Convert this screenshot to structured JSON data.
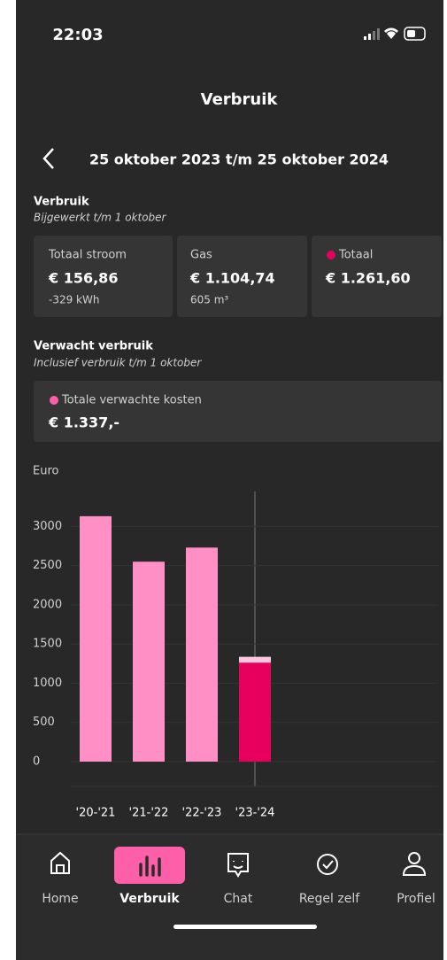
{
  "status": {
    "time": "22:03"
  },
  "header": {
    "title": "Verbruik",
    "period": "25 oktober 2023 t/m 25 oktober 2024"
  },
  "usage": {
    "title": "Verbruik",
    "subtitle": "Bijgewerkt t/m 1 oktober",
    "cards": [
      {
        "label": "Totaal stroom",
        "value": "€ 156,86",
        "sub": "-329 kWh"
      },
      {
        "label": "Gas",
        "value": "€ 1.104,74",
        "sub": "605 m³"
      },
      {
        "label": "Totaal",
        "value": "€ 1.261,60"
      }
    ]
  },
  "expected": {
    "title": "Verwacht verbruik",
    "subtitle": "Inclusief verbruik t/m 1 oktober",
    "label": "Totale verwachte kosten",
    "value": "€ 1.337,-"
  },
  "chart_data": {
    "type": "bar",
    "y_label": "Euro",
    "categories": [
      "'20-'21",
      "'21-'22",
      "'22-'23",
      "'23-'24"
    ],
    "series": [
      {
        "color": "#ff8fc4",
        "values": [
          3130,
          2550,
          2730,
          null
        ]
      },
      {
        "color": "#e8005f",
        "values": [
          null,
          null,
          null,
          1261.6
        ]
      },
      {
        "color": "#ffc7df",
        "values": [
          null,
          null,
          null,
          75.4
        ]
      }
    ],
    "stacked": true,
    "ylim": [
      0,
      3400
    ],
    "yticks": [
      0,
      500,
      1000,
      1500,
      2000,
      2500,
      3000
    ],
    "grid": true
  },
  "nav": {
    "items": [
      "Home",
      "Verbruik",
      "Chat",
      "Regel zelf",
      "Profiel"
    ],
    "active": 1
  }
}
